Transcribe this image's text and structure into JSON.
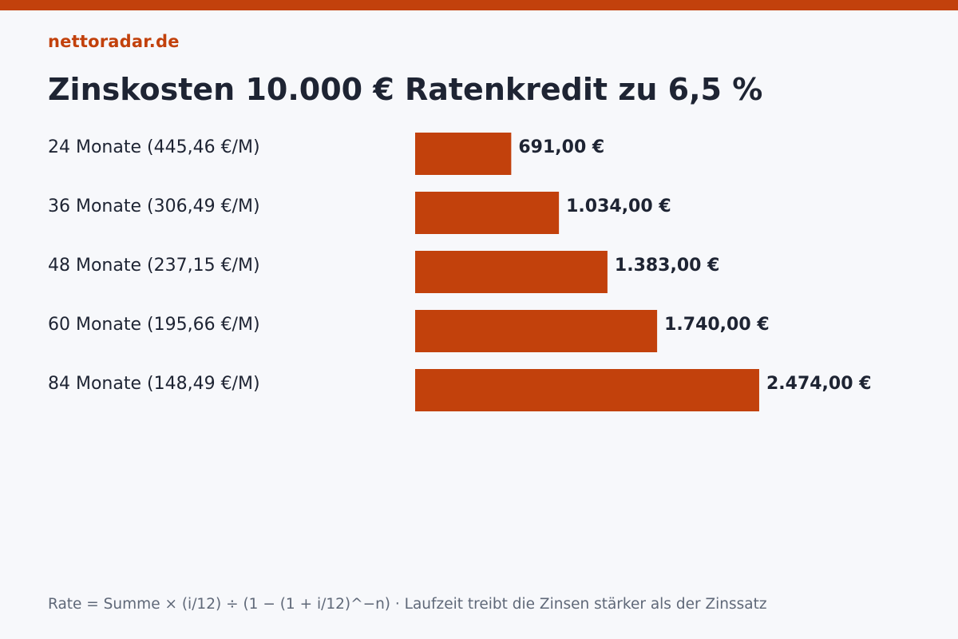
{
  "brand": "nettoradar.de",
  "colors": {
    "accent": "#c2410c",
    "text": "#1e2433",
    "muted": "#5f6878",
    "background": "#f7f8fb"
  },
  "chart_data": {
    "type": "bar",
    "orientation": "horizontal",
    "title": "Zinskosten 10.000 € Ratenkredit zu 6,5 %",
    "categories": [
      "24 Monate (445,46 €/M)",
      "36 Monate (306,49 €/M)",
      "48 Monate (237,15 €/M)",
      "60 Monate (195,66 €/M)",
      "84 Monate (148,49 €/M)"
    ],
    "values": [
      691.0,
      1034.0,
      1383.0,
      1740.0,
      2474.0
    ],
    "value_labels": [
      "691,00 €",
      "1.034,00 €",
      "1.383,00 €",
      "1.740,00 €",
      "2.474,00 €"
    ],
    "grid": false,
    "axes_visible": false
  },
  "footnote": "Rate = Summe × (i/12) ÷ (1 − (1 + i/12)^−n) · Laufzeit treibt die Zinsen stärker als der Zinssatz"
}
